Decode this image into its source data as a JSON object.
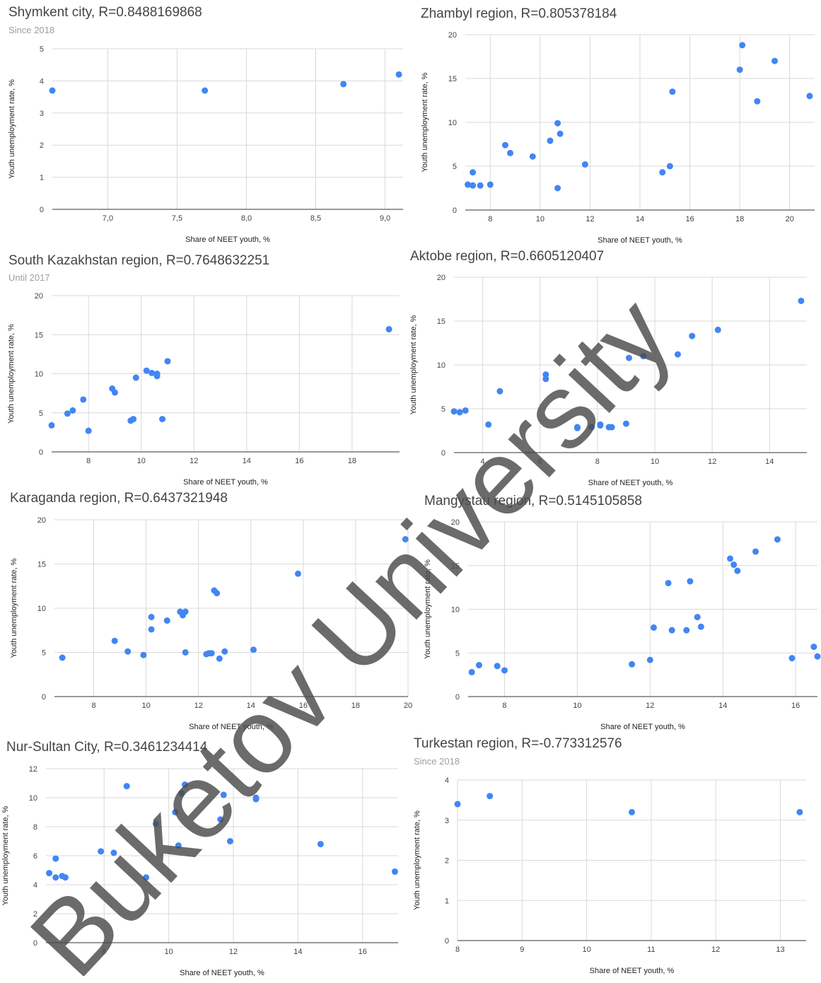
{
  "watermark": "Buketov University",
  "colors": {
    "point": "#4285f4",
    "grid": "#d9d9d9",
    "title": "#444444",
    "subtitle": "#9e9e9e"
  },
  "chart_data": [
    {
      "type": "scatter",
      "title": "Shymkent city, R=0.8488169868",
      "subtitle": "Since 2018",
      "xlabel": "Share of NEET youth, %",
      "ylabel": "Youth unemployment rate, %",
      "xlim": [
        6.6,
        9.13
      ],
      "ylim": [
        0,
        5
      ],
      "xticks": [
        "7,0",
        "7,5",
        "8,0",
        "8,5",
        "9,0"
      ],
      "xtick_values": [
        7.0,
        7.5,
        8.0,
        8.5,
        9.0
      ],
      "yticks": [
        "0",
        "1",
        "2",
        "3",
        "4",
        "5"
      ],
      "ytick_values": [
        0,
        1,
        2,
        3,
        4,
        5
      ],
      "grid": true,
      "points": [
        [
          6.6,
          3.7
        ],
        [
          7.7,
          3.7
        ],
        [
          8.7,
          3.9
        ],
        [
          9.1,
          4.2
        ]
      ]
    },
    {
      "type": "scatter",
      "title": "Zhambyl region, R=0.805378184",
      "subtitle": "",
      "xlabel": "Share of NEET youth, %",
      "ylabel": "Youth unemployment rate, %",
      "xlim": [
        7.0,
        21.0
      ],
      "ylim": [
        0,
        20
      ],
      "xticks": [
        "8",
        "10",
        "12",
        "14",
        "16",
        "18",
        "20"
      ],
      "xtick_values": [
        8,
        10,
        12,
        14,
        16,
        18,
        20
      ],
      "yticks": [
        "0",
        "5",
        "10",
        "15",
        "20"
      ],
      "ytick_values": [
        0,
        5,
        10,
        15,
        20
      ],
      "grid": true,
      "points": [
        [
          7.1,
          2.9
        ],
        [
          7.3,
          2.8
        ],
        [
          7.3,
          4.3
        ],
        [
          7.6,
          2.8
        ],
        [
          8.0,
          2.9
        ],
        [
          8.6,
          7.4
        ],
        [
          8.8,
          6.5
        ],
        [
          9.7,
          6.1
        ],
        [
          10.4,
          7.9
        ],
        [
          10.7,
          9.9
        ],
        [
          10.8,
          8.7
        ],
        [
          10.7,
          2.5
        ],
        [
          11.8,
          5.2
        ],
        [
          14.9,
          4.3
        ],
        [
          15.2,
          5.0
        ],
        [
          15.3,
          13.5
        ],
        [
          18.0,
          16.0
        ],
        [
          18.1,
          18.8
        ],
        [
          18.7,
          12.4
        ],
        [
          19.4,
          17.0
        ],
        [
          20.8,
          13.0
        ]
      ]
    },
    {
      "type": "scatter",
      "title": "South Kazakhstan region, R=0.7648632251",
      "subtitle": "Until 2017",
      "xlabel": "Share of NEET youth, %",
      "ylabel": "Youth unemployment rate, %",
      "xlim": [
        6.6,
        19.8
      ],
      "ylim": [
        0,
        20
      ],
      "xticks": [
        "8",
        "10",
        "12",
        "14",
        "16",
        "18"
      ],
      "xtick_values": [
        8,
        10,
        12,
        14,
        16,
        18
      ],
      "yticks": [
        "0",
        "5",
        "10",
        "15",
        "20"
      ],
      "ytick_values": [
        0,
        5,
        10,
        15,
        20
      ],
      "grid": true,
      "points": [
        [
          6.6,
          3.4
        ],
        [
          7.2,
          4.9
        ],
        [
          7.4,
          5.3
        ],
        [
          7.8,
          6.7
        ],
        [
          8.0,
          2.7
        ],
        [
          8.9,
          8.1
        ],
        [
          9.0,
          7.6
        ],
        [
          9.6,
          4.0
        ],
        [
          9.7,
          4.2
        ],
        [
          9.8,
          9.5
        ],
        [
          10.2,
          10.4
        ],
        [
          10.4,
          10.1
        ],
        [
          10.6,
          10.0
        ],
        [
          10.6,
          9.7
        ],
        [
          10.8,
          4.2
        ],
        [
          11.0,
          11.6
        ],
        [
          19.4,
          15.7
        ]
      ]
    },
    {
      "type": "scatter",
      "title": "Aktobe region, R=0.6605120407",
      "subtitle": "",
      "xlabel": "Share of NEET youth, %",
      "ylabel": "Youth unemployment rate, %",
      "xlim": [
        3.0,
        15.3
      ],
      "ylim": [
        0,
        20
      ],
      "xticks": [
        "4",
        "6",
        "8",
        "10",
        "12",
        "14"
      ],
      "xtick_values": [
        4,
        6,
        8,
        10,
        12,
        14
      ],
      "yticks": [
        "0",
        "5",
        "10",
        "15",
        "20"
      ],
      "ytick_values": [
        0,
        5,
        10,
        15,
        20
      ],
      "grid": true,
      "points": [
        [
          3.0,
          4.7
        ],
        [
          3.2,
          4.6
        ],
        [
          3.4,
          4.8
        ],
        [
          4.2,
          3.2
        ],
        [
          4.6,
          7.0
        ],
        [
          6.2,
          8.9
        ],
        [
          6.2,
          8.4
        ],
        [
          7.3,
          2.8
        ],
        [
          7.3,
          2.9
        ],
        [
          7.8,
          2.9
        ],
        [
          8.1,
          3.1
        ],
        [
          8.1,
          3.2
        ],
        [
          8.4,
          2.9
        ],
        [
          8.5,
          2.9
        ],
        [
          9.0,
          3.3
        ],
        [
          9.1,
          10.8
        ],
        [
          9.6,
          11.0
        ],
        [
          10.8,
          11.2
        ],
        [
          11.3,
          13.3
        ],
        [
          12.2,
          14.0
        ],
        [
          15.1,
          17.3
        ]
      ]
    },
    {
      "type": "scatter",
      "title": "Karaganda region, R=0.6437321948",
      "subtitle": "",
      "xlabel": "Share of NEET youth, %",
      "ylabel": "Youth unemployment rate, %",
      "xlim": [
        6.5,
        20.0
      ],
      "ylim": [
        0,
        20
      ],
      "xticks": [
        "8",
        "10",
        "12",
        "14",
        "16",
        "18",
        "20"
      ],
      "xtick_values": [
        8,
        10,
        12,
        14,
        16,
        18,
        20
      ],
      "yticks": [
        "0",
        "5",
        "10",
        "15",
        "20"
      ],
      "ytick_values": [
        0,
        5,
        10,
        15,
        20
      ],
      "grid": true,
      "points": [
        [
          6.8,
          4.4
        ],
        [
          8.8,
          6.3
        ],
        [
          9.3,
          5.1
        ],
        [
          9.9,
          4.7
        ],
        [
          10.2,
          9.0
        ],
        [
          10.2,
          7.6
        ],
        [
          10.8,
          8.6
        ],
        [
          11.3,
          9.6
        ],
        [
          11.4,
          9.2
        ],
        [
          11.5,
          9.6
        ],
        [
          11.5,
          5.0
        ],
        [
          12.3,
          4.8
        ],
        [
          12.4,
          4.9
        ],
        [
          12.5,
          4.9
        ],
        [
          12.6,
          12.0
        ],
        [
          12.7,
          11.7
        ],
        [
          12.8,
          4.3
        ],
        [
          13.0,
          5.1
        ],
        [
          14.1,
          5.3
        ],
        [
          15.8,
          13.9
        ],
        [
          19.9,
          17.8
        ]
      ]
    },
    {
      "type": "scatter",
      "title": "Mangystau region, R=0.5145105858",
      "subtitle": "",
      "xlabel": "Share of NEET youth, %",
      "ylabel": "Youth unemployment rate, %",
      "xlim": [
        7.0,
        16.6
      ],
      "ylim": [
        0,
        20
      ],
      "xticks": [
        "8",
        "10",
        "12",
        "14",
        "16"
      ],
      "xtick_values": [
        8,
        10,
        12,
        14,
        16
      ],
      "yticks": [
        "0",
        "5",
        "10",
        "15",
        "20"
      ],
      "ytick_values": [
        0,
        5,
        10,
        15,
        20
      ],
      "grid": true,
      "points": [
        [
          7.1,
          2.8
        ],
        [
          7.3,
          3.6
        ],
        [
          7.8,
          3.5
        ],
        [
          8.0,
          3.0
        ],
        [
          11.5,
          3.7
        ],
        [
          12.0,
          4.2
        ],
        [
          12.1,
          7.9
        ],
        [
          12.5,
          13.0
        ],
        [
          12.6,
          7.6
        ],
        [
          13.0,
          7.6
        ],
        [
          13.1,
          13.2
        ],
        [
          13.3,
          9.1
        ],
        [
          13.4,
          8.0
        ],
        [
          14.2,
          15.8
        ],
        [
          14.3,
          15.1
        ],
        [
          14.4,
          14.4
        ],
        [
          14.9,
          16.6
        ],
        [
          15.5,
          18.0
        ],
        [
          15.9,
          4.4
        ],
        [
          16.5,
          5.7
        ],
        [
          16.6,
          4.6
        ]
      ]
    },
    {
      "type": "scatter",
      "title": "Nur-Sultan City, R=0.3461234414",
      "subtitle": "",
      "xlabel": "Share of NEET youth, %",
      "ylabel": "Youth unemployment rate, %",
      "xlim": [
        6.2,
        17.1
      ],
      "ylim": [
        0,
        12
      ],
      "xticks": [
        "8",
        "10",
        "12",
        "14",
        "16"
      ],
      "xtick_values": [
        8,
        10,
        12,
        14,
        16
      ],
      "yticks": [
        "0",
        "2",
        "4",
        "6",
        "8",
        "10",
        "12"
      ],
      "ytick_values": [
        0,
        2,
        4,
        6,
        8,
        10,
        12
      ],
      "grid": true,
      "points": [
        [
          6.3,
          4.8
        ],
        [
          6.5,
          5.8
        ],
        [
          6.5,
          4.5
        ],
        [
          6.7,
          4.6
        ],
        [
          6.8,
          4.5
        ],
        [
          7.9,
          6.3
        ],
        [
          8.3,
          6.2
        ],
        [
          8.7,
          10.8
        ],
        [
          9.3,
          4.5
        ],
        [
          9.6,
          8.2
        ],
        [
          10.2,
          9.0
        ],
        [
          10.3,
          6.7
        ],
        [
          10.4,
          10.3
        ],
        [
          10.5,
          10.9
        ],
        [
          11.6,
          8.5
        ],
        [
          11.7,
          10.2
        ],
        [
          11.9,
          7.0
        ],
        [
          12.7,
          9.9
        ],
        [
          12.7,
          10.0
        ],
        [
          14.7,
          6.8
        ],
        [
          17.0,
          4.9
        ]
      ]
    },
    {
      "type": "scatter",
      "title": "Turkestan region, R=-0.773312576",
      "subtitle": "Since 2018",
      "xlabel": "Share of NEET youth, %",
      "ylabel": "Youth unemployment rate, %",
      "xlim": [
        8.0,
        13.4
      ],
      "ylim": [
        0,
        4
      ],
      "xticks": [
        "8",
        "9",
        "10",
        "11",
        "12",
        "13"
      ],
      "xtick_values": [
        8,
        9,
        10,
        11,
        12,
        13
      ],
      "yticks": [
        "0",
        "1",
        "2",
        "3",
        "4"
      ],
      "ytick_values": [
        0,
        1,
        2,
        3,
        4
      ],
      "grid": true,
      "points": [
        [
          8.0,
          3.4
        ],
        [
          8.5,
          3.6
        ],
        [
          10.7,
          3.2
        ],
        [
          13.3,
          3.2
        ]
      ]
    }
  ]
}
